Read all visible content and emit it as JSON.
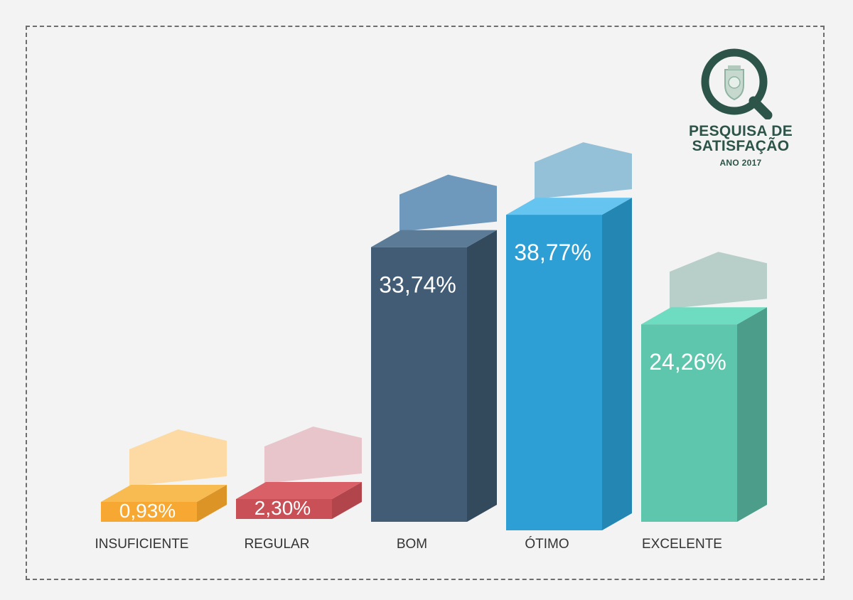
{
  "logo": {
    "title_line1": "PESQUISA DE",
    "title_line2": "SATISFAÇÃO",
    "subtitle": "ANO 2017",
    "icon": "magnifier-seal-icon",
    "color": "#2d5448"
  },
  "chart_data": {
    "type": "bar",
    "title": "",
    "xlabel": "",
    "ylabel": "",
    "ylim": [
      0,
      40
    ],
    "grid": false,
    "legend": "none",
    "categories": [
      "INSUFICIENTE",
      "REGULAR",
      "BOM",
      "ÓTIMO",
      "EXCELENTE"
    ],
    "values": [
      0.93,
      2.3,
      33.74,
      38.77,
      24.26
    ],
    "value_labels": [
      "0,93%",
      "2,30%",
      "33,74%",
      "38,77%",
      "24,26%"
    ],
    "colors": {
      "front": [
        "#f6a832",
        "#ca5057",
        "#415c74",
        "#2e9fd4",
        "#5ec6ad"
      ],
      "side": [
        "#dd9427",
        "#b2454b",
        "#33495c",
        "#2386b3",
        "#4c9e8a"
      ],
      "top": [
        "#f8bb52",
        "#d96067",
        "#5b7b96",
        "#66c4f0",
        "#6ddcc0"
      ],
      "house": [
        "#fdd9a3",
        "#e8c5cb",
        "#6f98bd",
        "#95c1d8",
        "#b8cec8"
      ]
    }
  }
}
